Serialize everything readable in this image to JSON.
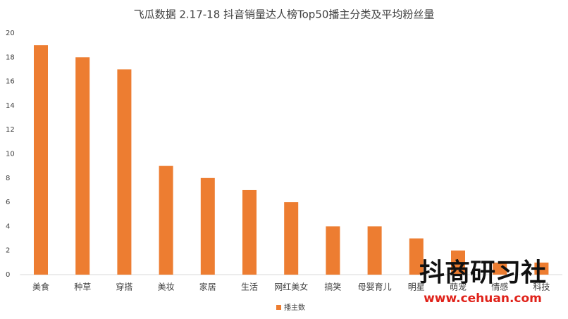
{
  "chart_data": {
    "type": "bar",
    "title": "飞瓜数据  2.17-18 抖音销量达人榜Top50播主分类及平均粉丝量",
    "categories": [
      "美食",
      "种草",
      "穿搭",
      "美妆",
      "家居",
      "生活",
      "网红美女",
      "搞笑",
      "母婴育儿",
      "明星",
      "萌宠",
      "情感",
      "科技"
    ],
    "series": [
      {
        "name": "播主数",
        "color": "#ed7d31",
        "values": [
          19,
          18,
          17,
          9,
          8,
          7,
          6,
          4,
          4,
          3,
          2,
          1,
          1
        ]
      }
    ],
    "ylim": [
      0,
      20
    ],
    "yticks": [
      0,
      2,
      4,
      6,
      8,
      10,
      12,
      14,
      16,
      18,
      20
    ],
    "grid": false,
    "legend": "bottom"
  },
  "watermark": {
    "logo": "抖商研习社",
    "url": "www.cehuan.com"
  }
}
